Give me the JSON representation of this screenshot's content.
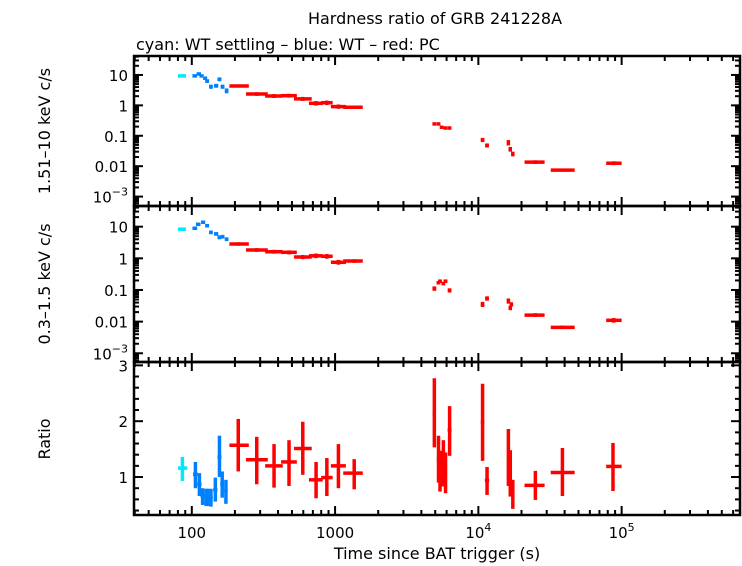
{
  "chart_data": {
    "type": "scatter",
    "title": "Hardness ratio of GRB 241228A",
    "subtitle": "cyan: WT settling – blue: WT – red: PC",
    "xlabel": "Time since BAT trigger (s)",
    "xscale": "log",
    "xlim": [
      39.5,
      670000
    ],
    "xticks": [
      "100",
      "1000",
      "10^4",
      "10^5"
    ],
    "xtick_values": [
      100,
      1000,
      10000,
      100000
    ],
    "colors": {
      "WT settling": "#00e8ff",
      "WT": "#0080ff",
      "PC": "#ff0000"
    },
    "point_format": [
      "time",
      "time_low",
      "time_high",
      "value",
      "value_low",
      "value_high"
    ],
    "panels": [
      {
        "ylabel": "1.51–10 keV c/s",
        "yscale": "log",
        "ylim": [
          0.00049,
          42
        ],
        "yticks": [
          "10",
          "1",
          "0.1",
          "0.01",
          "10^-3"
        ],
        "ytick_values": [
          10,
          1,
          0.1,
          0.01,
          0.001
        ],
        "series": [
          {
            "mode": "WT settling",
            "points": [
              [
                85,
                80,
                91,
                9.3,
                8.5,
                10.1
              ]
            ]
          },
          {
            "mode": "WT",
            "points": [
              [
                105,
                101,
                109,
                9.3,
                8.3,
                10.4
              ],
              [
                112,
                108,
                116,
                10.8,
                9.7,
                12
              ],
              [
                117,
                113,
                121,
                9.3,
                8.3,
                10.4
              ],
              [
                124,
                120,
                128,
                7.8,
                6.9,
                8.8
              ],
              [
                128,
                124,
                132,
                6.3,
                5.5,
                7.2
              ],
              [
                136,
                132,
                140,
                4.1,
                3.5,
                4.8
              ],
              [
                148,
                143,
                153,
                4.4,
                3.8,
                5.1
              ],
              [
                156,
                151,
                161,
                7.2,
                6.2,
                8.3
              ],
              [
                164,
                159,
                169,
                4.1,
                3.5,
                4.8
              ],
              [
                175,
                170,
                180,
                3.0,
                2.5,
                3.6
              ]
            ]
          },
          {
            "mode": "PC",
            "points": [
              [
                211,
                183,
                250,
                4.35,
                3.9,
                4.85
              ],
              [
                284,
                239,
                339,
                2.37,
                2.05,
                2.7
              ],
              [
                375,
                325,
                431,
                2.04,
                1.75,
                2.35
              ],
              [
                477,
                420,
                541,
                2.08,
                1.8,
                2.4
              ],
              [
                595,
                517,
                687,
                1.63,
                1.4,
                1.9
              ],
              [
                737,
                657,
                820,
                1.17,
                0.98,
                1.38
              ],
              [
                876,
                800,
                962,
                1.22,
                1.02,
                1.44
              ],
              [
                1055,
                935,
                1190,
                0.91,
                0.77,
                1.07
              ],
              [
                1360,
                1140,
                1560,
                0.87,
                0.77,
                0.98
              ],
              [
                4930,
                4780,
                5080,
                0.245,
                0.22,
                0.27
              ],
              [
                5270,
                5110,
                5430,
                0.245,
                0.22,
                0.27
              ],
              [
                5550,
                5380,
                5720,
                0.19,
                0.17,
                0.21
              ],
              [
                5900,
                5720,
                6080,
                0.18,
                0.16,
                0.2
              ],
              [
                6300,
                6110,
                6490,
                0.18,
                0.16,
                0.2
              ],
              [
                10700,
                10400,
                11000,
                0.073,
                0.062,
                0.085
              ],
              [
                11500,
                11150,
                11850,
                0.048,
                0.041,
                0.056
              ],
              [
                16200,
                15900,
                16500,
                0.059,
                0.048,
                0.072
              ],
              [
                16700,
                16400,
                17000,
                0.036,
                0.03,
                0.043
              ],
              [
                17400,
                17100,
                17700,
                0.025,
                0.021,
                0.03
              ],
              [
                25000,
                21000,
                29000,
                0.0136,
                0.0118,
                0.0156
              ],
              [
                38600,
                32000,
                47000,
                0.0074,
                0.0066,
                0.0083
              ],
              [
                88000,
                78000,
                100000,
                0.0125,
                0.0108,
                0.0145
              ]
            ]
          }
        ]
      },
      {
        "ylabel": "0.3–1.5 keV c/s",
        "yscale": "log",
        "ylim": [
          0.00053,
          45
        ],
        "yticks": [
          "10",
          "1",
          "0.1",
          "0.01",
          "10^-3"
        ],
        "ytick_values": [
          10,
          1,
          0.1,
          0.01,
          0.001
        ],
        "series": [
          {
            "mode": "WT settling",
            "points": [
              [
                85,
                80,
                91,
                8.3,
                7.6,
                9.1
              ]
            ]
          },
          {
            "mode": "WT",
            "points": [
              [
                105,
                101,
                109,
                8.9,
                7.9,
                10
              ],
              [
                111,
                107,
                115,
                11.9,
                10.7,
                13.2
              ],
              [
                120,
                116,
                124,
                13.8,
                12.4,
                15.3
              ],
              [
                128,
                124,
                132,
                10.7,
                9.6,
                11.9
              ],
              [
                136,
                132,
                140,
                6.6,
                5.8,
                7.5
              ],
              [
                148,
                143,
                153,
                5.9,
                5.2,
                6.7
              ],
              [
                156,
                151,
                161,
                4.6,
                4.0,
                5.3
              ],
              [
                164,
                159,
                169,
                4.8,
                4.2,
                5.5
              ],
              [
                175,
                170,
                180,
                4.0,
                3.5,
                4.6
              ]
            ]
          },
          {
            "mode": "PC",
            "points": [
              [
                211,
                183,
                250,
                2.84,
                2.5,
                3.2
              ],
              [
                284,
                239,
                339,
                1.83,
                1.6,
                2.1
              ],
              [
                375,
                325,
                431,
                1.62,
                1.4,
                1.86
              ],
              [
                477,
                420,
                541,
                1.55,
                1.33,
                1.78
              ],
              [
                595,
                517,
                687,
                1.1,
                0.94,
                1.28
              ],
              [
                737,
                657,
                820,
                1.2,
                1.01,
                1.42
              ],
              [
                876,
                800,
                962,
                1.16,
                0.97,
                1.37
              ],
              [
                1055,
                935,
                1190,
                0.75,
                0.63,
                0.89
              ],
              [
                1360,
                1140,
                1560,
                0.82,
                0.72,
                0.93
              ],
              [
                4930,
                4780,
                5080,
                0.111,
                0.094,
                0.13
              ],
              [
                5270,
                5110,
                5430,
                0.17,
                0.15,
                0.19
              ],
              [
                5400,
                5240,
                5560,
                0.19,
                0.17,
                0.21
              ],
              [
                5700,
                5530,
                5870,
                0.16,
                0.14,
                0.18
              ],
              [
                5900,
                5720,
                6080,
                0.19,
                0.17,
                0.21
              ],
              [
                6300,
                6110,
                6490,
                0.097,
                0.083,
                0.113
              ],
              [
                10700,
                10400,
                11000,
                0.035,
                0.029,
                0.042
              ],
              [
                11500,
                11150,
                11850,
                0.054,
                0.046,
                0.063
              ],
              [
                16200,
                15900,
                16500,
                0.045,
                0.037,
                0.054
              ],
              [
                17000,
                16700,
                17300,
                0.035,
                0.03,
                0.041
              ],
              [
                16700,
                16400,
                17000,
                0.027,
                0.023,
                0.032
              ],
              [
                25000,
                21000,
                29000,
                0.0161,
                0.014,
                0.0185
              ],
              [
                38600,
                32000,
                47000,
                0.0066,
                0.0058,
                0.0075
              ],
              [
                88000,
                78000,
                100000,
                0.011,
                0.0093,
                0.013
              ]
            ]
          }
        ]
      },
      {
        "ylabel": "Ratio",
        "yscale": "linear",
        "ylim": [
          0.32,
          3.06
        ],
        "yticks": [
          "1",
          "2",
          "3"
        ],
        "ytick_values": [
          1,
          2,
          3
        ],
        "series": [
          {
            "mode": "WT settling",
            "points": [
              [
                86,
                80,
                93,
                1.16,
                0.93,
                1.36
              ]
            ]
          },
          {
            "mode": "WT",
            "points": [
              [
                106,
                102,
                110,
                1.05,
                0.8,
                1.27
              ],
              [
                113,
                109,
                117,
                0.87,
                0.66,
                1.07
              ],
              [
                119,
                115,
                123,
                0.66,
                0.5,
                0.8
              ],
              [
                126,
                122,
                130,
                0.65,
                0.48,
                0.79
              ],
              [
                129,
                125,
                133,
                0.63,
                0.48,
                0.79
              ],
              [
                136,
                132,
                140,
                0.63,
                0.47,
                0.79
              ],
              [
                146,
                141,
                151,
                0.77,
                0.56,
                0.99
              ],
              [
                156,
                151,
                161,
                1.36,
                1.0,
                1.74
              ],
              [
                163,
                158,
                168,
                0.87,
                0.63,
                1.1
              ],
              [
                173,
                168,
                178,
                0.75,
                0.52,
                0.95
              ]
            ]
          },
          {
            "mode": "PC",
            "points": [
              [
                211,
                183,
                250,
                1.57,
                1.1,
                2.04
              ],
              [
                284,
                239,
                339,
                1.31,
                0.87,
                1.72
              ],
              [
                375,
                325,
                431,
                1.2,
                0.81,
                1.59
              ],
              [
                477,
                420,
                541,
                1.27,
                0.84,
                1.66
              ],
              [
                595,
                517,
                687,
                1.51,
                1.04,
                1.99
              ],
              [
                737,
                657,
                820,
                0.95,
                0.62,
                1.27
              ],
              [
                876,
                800,
                962,
                0.99,
                0.66,
                1.34
              ],
              [
                1055,
                935,
                1190,
                1.2,
                0.8,
                1.59
              ],
              [
                1360,
                1140,
                1560,
                1.07,
                0.78,
                1.32
              ],
              [
                4930,
                4800,
                5060,
                2.14,
                1.53,
                2.77
              ],
              [
                5270,
                5130,
                5410,
                1.32,
                0.9,
                1.74
              ],
              [
                5400,
                5260,
                5540,
                1.1,
                0.74,
                1.47
              ],
              [
                5550,
                5400,
                5700,
                1.07,
                0.83,
                1.44
              ],
              [
                5700,
                5550,
                5850,
                1.0,
                0.84,
                1.66
              ],
              [
                5900,
                5750,
                6050,
                1.07,
                0.71,
                1.44
              ],
              [
                6300,
                6100,
                6500,
                1.84,
                1.38,
                2.27
              ],
              [
                10700,
                10400,
                11000,
                1.98,
                1.29,
                2.67
              ],
              [
                11500,
                11100,
                11900,
                0.94,
                0.68,
                1.18
              ],
              [
                16200,
                15900,
                16500,
                1.31,
                0.84,
                1.86
              ],
              [
                16700,
                16400,
                17000,
                1.07,
                0.65,
                1.48
              ],
              [
                17400,
                17100,
                17700,
                0.69,
                0.43,
                0.95
              ],
              [
                25000,
                21000,
                29000,
                0.85,
                0.59,
                1.11
              ],
              [
                38600,
                32000,
                47000,
                1.08,
                0.66,
                1.52
              ],
              [
                87000,
                78000,
                100000,
                1.19,
                0.75,
                1.61
              ]
            ]
          }
        ]
      }
    ]
  }
}
